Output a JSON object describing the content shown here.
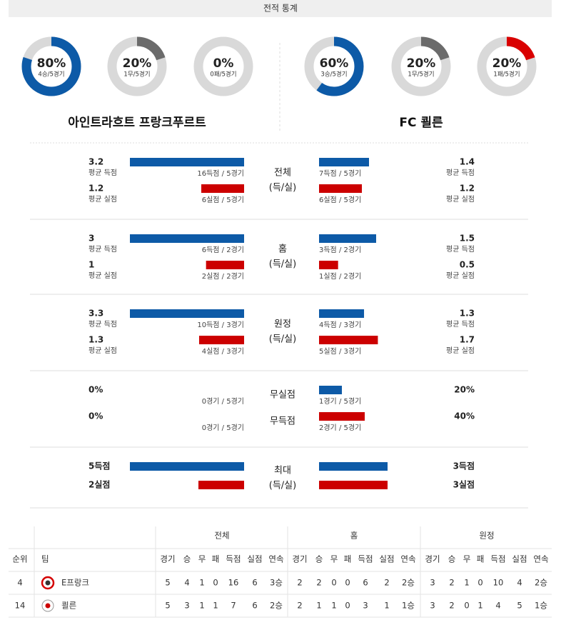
{
  "header": {
    "title": "전적 통계"
  },
  "teams": [
    {
      "name": "아인트라흐트 프랑크푸르트",
      "donuts": [
        {
          "value": 80,
          "value_label": "80%",
          "sub": "4승/5경기",
          "color": "#0d5aa7"
        },
        {
          "value": 20,
          "value_label": "20%",
          "sub": "1무/5경기",
          "color": "#6b6b6b"
        },
        {
          "value": 0,
          "value_label": "0%",
          "sub": "0패/5경기",
          "color": "#d90000"
        }
      ]
    },
    {
      "name": "FC 쾰른",
      "donuts": [
        {
          "value": 60,
          "value_label": "60%",
          "sub": "3승/5경기",
          "color": "#0d5aa7"
        },
        {
          "value": 20,
          "value_label": "20%",
          "sub": "1무/5경기",
          "color": "#6b6b6b"
        },
        {
          "value": 20,
          "value_label": "20%",
          "sub": "1패/5경기",
          "color": "#d90000"
        }
      ]
    }
  ],
  "sections": [
    {
      "label": "전체",
      "sublabel": "(득/실)",
      "rows": [
        {
          "color": "#0d5aa7",
          "home": {
            "value": 3.2,
            "caption": "평균 득점",
            "detail": "16득점 / 5경기"
          },
          "away": {
            "value": 1.4,
            "caption": "평균 득점",
            "detail": "7득점 / 5경기"
          }
        },
        {
          "color": "#cc0000",
          "home": {
            "value": 1.2,
            "caption": "평균 실점",
            "detail": "6실점 / 5경기"
          },
          "away": {
            "value": 1.2,
            "caption": "평균 실점",
            "detail": "6실점 / 5경기"
          }
        }
      ]
    },
    {
      "label": "홈",
      "sublabel": "(득/실)",
      "rows": [
        {
          "color": "#0d5aa7",
          "home": {
            "value": 3,
            "caption": "평균 득점",
            "detail": "6득점 / 2경기"
          },
          "away": {
            "value": 1.5,
            "caption": "평균 득점",
            "detail": "3득점 / 2경기"
          }
        },
        {
          "color": "#cc0000",
          "home": {
            "value": 1,
            "caption": "평균 실점",
            "detail": "2실점 / 2경기"
          },
          "away": {
            "value": 0.5,
            "caption": "평균 실점",
            "detail": "1실점 / 2경기"
          }
        }
      ]
    },
    {
      "label": "원정",
      "sublabel": "(득/실)",
      "rows": [
        {
          "color": "#0d5aa7",
          "home": {
            "value": 3.3,
            "caption": "평균 득점",
            "detail": "10득점 / 3경기"
          },
          "away": {
            "value": 1.3,
            "caption": "평균 득점",
            "detail": "4득점 / 3경기"
          }
        },
        {
          "color": "#cc0000",
          "home": {
            "value": 1.3,
            "caption": "평균 실점",
            "detail": "4실점 / 3경기"
          },
          "away": {
            "value": 1.7,
            "caption": "평균 실점",
            "detail": "5실점 / 3경기"
          }
        }
      ]
    },
    {
      "rows": [
        {
          "label": "무실점",
          "color": "#0d5aa7",
          "home": {
            "value": 0,
            "value_label": "0%",
            "detail": "0경기 / 5경기"
          },
          "away": {
            "value": 20,
            "value_label": "20%",
            "detail": "1경기 / 5경기"
          }
        },
        {
          "label": "무득점",
          "color": "#cc0000",
          "home": {
            "value": 0,
            "value_label": "0%",
            "detail": "0경기 / 5경기"
          },
          "away": {
            "value": 40,
            "value_label": "40%",
            "detail": "2경기 / 5경기"
          }
        }
      ]
    },
    {
      "label": "최대",
      "sublabel": "(득/실)",
      "rows": [
        {
          "color": "#0d5aa7",
          "home": {
            "value": 5,
            "value_label": "5득점"
          },
          "away": {
            "value": 3,
            "value_label": "3득점"
          }
        },
        {
          "color": "#cc0000",
          "home": {
            "value": 2,
            "value_label": "2실점"
          },
          "away": {
            "value": 3,
            "value_label": "3실점"
          }
        }
      ]
    }
  ],
  "table": {
    "rank_header": "순위",
    "team_header": "팀",
    "groups": [
      "전체",
      "홈",
      "원정"
    ],
    "stat_columns": [
      "경기",
      "승",
      "무",
      "패",
      "득점",
      "실점",
      "연속"
    ],
    "rows": [
      {
        "rank": 4,
        "team": "E프랑크",
        "stats": [
          [
            5,
            4,
            1,
            0,
            16,
            6,
            "3승"
          ],
          [
            2,
            2,
            0,
            0,
            6,
            2,
            "2승"
          ],
          [
            3,
            2,
            1,
            0,
            10,
            4,
            "2승"
          ]
        ]
      },
      {
        "rank": 14,
        "team": "쾰른",
        "stats": [
          [
            5,
            3,
            1,
            1,
            7,
            6,
            "2승"
          ],
          [
            2,
            1,
            1,
            0,
            3,
            1,
            "1승"
          ],
          [
            3,
            2,
            0,
            1,
            4,
            5,
            "1승"
          ]
        ]
      }
    ]
  }
}
